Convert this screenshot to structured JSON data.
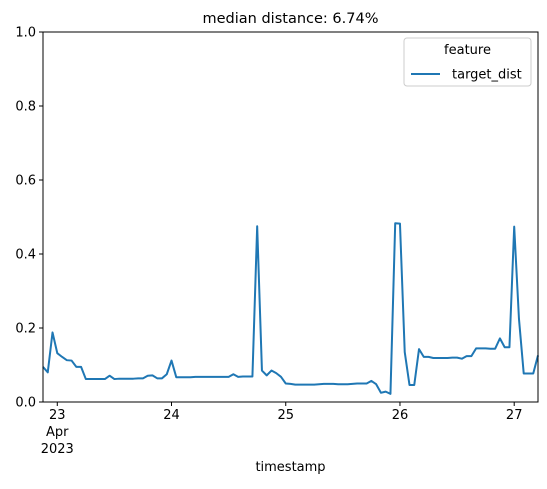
{
  "chart_data": {
    "type": "line",
    "title": "median distance: 6.74%",
    "xlabel": "timestamp",
    "ylabel": "",
    "xlim": [
      "2023-04-22 21:00",
      "2023-04-27 05:00"
    ],
    "ylim": [
      0,
      1
    ],
    "yticks": [
      "0.0",
      "0.2",
      "0.4",
      "0.6",
      "0.8",
      "1.0"
    ],
    "xticks": [
      {
        "t": "2023-04-23 00:00",
        "label": "23",
        "sub1": "Apr",
        "sub2": "2023"
      },
      {
        "t": "2023-04-24 00:00",
        "label": "24",
        "sub1": "",
        "sub2": ""
      },
      {
        "t": "2023-04-25 00:00",
        "label": "25",
        "sub1": "",
        "sub2": ""
      },
      {
        "t": "2023-04-26 00:00",
        "label": "26",
        "sub1": "",
        "sub2": ""
      },
      {
        "t": "2023-04-27 00:00",
        "label": "27",
        "sub1": "",
        "sub2": ""
      }
    ],
    "grid": false,
    "legend": {
      "title": "feature",
      "position": "upper right"
    },
    "series": [
      {
        "name": "target_dist",
        "color": "#1f77b4",
        "points": [
          [
            "2023-04-22 21:00",
            0.095
          ],
          [
            "2023-04-22 22:00",
            0.08
          ],
          [
            "2023-04-22 23:00",
            0.188
          ],
          [
            "2023-04-23 00:00",
            0.132
          ],
          [
            "2023-04-23 01:00",
            0.122
          ],
          [
            "2023-04-23 02:00",
            0.113
          ],
          [
            "2023-04-23 03:00",
            0.112
          ],
          [
            "2023-04-23 04:00",
            0.095
          ],
          [
            "2023-04-23 05:00",
            0.095
          ],
          [
            "2023-04-23 06:00",
            0.062
          ],
          [
            "2023-04-23 07:00",
            0.062
          ],
          [
            "2023-04-23 08:00",
            0.062
          ],
          [
            "2023-04-23 09:00",
            0.062
          ],
          [
            "2023-04-23 10:00",
            0.062
          ],
          [
            "2023-04-23 11:00",
            0.071
          ],
          [
            "2023-04-23 12:00",
            0.062
          ],
          [
            "2023-04-23 13:00",
            0.063
          ],
          [
            "2023-04-23 14:00",
            0.063
          ],
          [
            "2023-04-23 15:00",
            0.063
          ],
          [
            "2023-04-23 16:00",
            0.063
          ],
          [
            "2023-04-23 17:00",
            0.064
          ],
          [
            "2023-04-23 18:00",
            0.064
          ],
          [
            "2023-04-23 19:00",
            0.071
          ],
          [
            "2023-04-23 20:00",
            0.072
          ],
          [
            "2023-04-23 21:00",
            0.064
          ],
          [
            "2023-04-23 22:00",
            0.064
          ],
          [
            "2023-04-23 23:00",
            0.075
          ],
          [
            "2023-04-24 00:00",
            0.112
          ],
          [
            "2023-04-24 01:00",
            0.067
          ],
          [
            "2023-04-24 02:00",
            0.067
          ],
          [
            "2023-04-24 03:00",
            0.067
          ],
          [
            "2023-04-24 04:00",
            0.067
          ],
          [
            "2023-04-24 05:00",
            0.068
          ],
          [
            "2023-04-24 06:00",
            0.068
          ],
          [
            "2023-04-24 07:00",
            0.068
          ],
          [
            "2023-04-24 08:00",
            0.068
          ],
          [
            "2023-04-24 09:00",
            0.068
          ],
          [
            "2023-04-24 10:00",
            0.068
          ],
          [
            "2023-04-24 11:00",
            0.068
          ],
          [
            "2023-04-24 12:00",
            0.068
          ],
          [
            "2023-04-24 13:00",
            0.075
          ],
          [
            "2023-04-24 14:00",
            0.068
          ],
          [
            "2023-04-24 15:00",
            0.069
          ],
          [
            "2023-04-24 16:00",
            0.069
          ],
          [
            "2023-04-24 17:00",
            0.069
          ],
          [
            "2023-04-24 18:00",
            0.475
          ],
          [
            "2023-04-24 19:00",
            0.085
          ],
          [
            "2023-04-24 20:00",
            0.072
          ],
          [
            "2023-04-24 21:00",
            0.085
          ],
          [
            "2023-04-24 22:00",
            0.078
          ],
          [
            "2023-04-24 23:00",
            0.068
          ],
          [
            "2023-04-25 00:00",
            0.05
          ],
          [
            "2023-04-25 01:00",
            0.049
          ],
          [
            "2023-04-25 02:00",
            0.047
          ],
          [
            "2023-04-25 03:00",
            0.047
          ],
          [
            "2023-04-25 04:00",
            0.047
          ],
          [
            "2023-04-25 05:00",
            0.047
          ],
          [
            "2023-04-25 06:00",
            0.047
          ],
          [
            "2023-04-25 07:00",
            0.048
          ],
          [
            "2023-04-25 08:00",
            0.049
          ],
          [
            "2023-04-25 09:00",
            0.049
          ],
          [
            "2023-04-25 10:00",
            0.049
          ],
          [
            "2023-04-25 11:00",
            0.048
          ],
          [
            "2023-04-25 12:00",
            0.048
          ],
          [
            "2023-04-25 13:00",
            0.048
          ],
          [
            "2023-04-25 14:00",
            0.049
          ],
          [
            "2023-04-25 15:00",
            0.05
          ],
          [
            "2023-04-25 16:00",
            0.05
          ],
          [
            "2023-04-25 17:00",
            0.05
          ],
          [
            "2023-04-25 18:00",
            0.057
          ],
          [
            "2023-04-25 19:00",
            0.048
          ],
          [
            "2023-04-25 20:00",
            0.025
          ],
          [
            "2023-04-25 21:00",
            0.028
          ],
          [
            "2023-04-25 22:00",
            0.022
          ],
          [
            "2023-04-25 23:00",
            0.483
          ],
          [
            "2023-04-26 00:00",
            0.482
          ],
          [
            "2023-04-26 01:00",
            0.135
          ],
          [
            "2023-04-26 02:00",
            0.046
          ],
          [
            "2023-04-26 03:00",
            0.046
          ],
          [
            "2023-04-26 04:00",
            0.143
          ],
          [
            "2023-04-26 05:00",
            0.122
          ],
          [
            "2023-04-26 06:00",
            0.122
          ],
          [
            "2023-04-26 07:00",
            0.119
          ],
          [
            "2023-04-26 08:00",
            0.119
          ],
          [
            "2023-04-26 09:00",
            0.119
          ],
          [
            "2023-04-26 10:00",
            0.119
          ],
          [
            "2023-04-26 11:00",
            0.12
          ],
          [
            "2023-04-26 12:00",
            0.12
          ],
          [
            "2023-04-26 13:00",
            0.117
          ],
          [
            "2023-04-26 14:00",
            0.124
          ],
          [
            "2023-04-26 15:00",
            0.124
          ],
          [
            "2023-04-26 16:00",
            0.145
          ],
          [
            "2023-04-26 17:00",
            0.145
          ],
          [
            "2023-04-26 18:00",
            0.145
          ],
          [
            "2023-04-26 19:00",
            0.144
          ],
          [
            "2023-04-26 20:00",
            0.144
          ],
          [
            "2023-04-26 21:00",
            0.172
          ],
          [
            "2023-04-26 22:00",
            0.148
          ],
          [
            "2023-04-26 23:00",
            0.148
          ],
          [
            "2023-04-27 00:00",
            0.474
          ],
          [
            "2023-04-27 01:00",
            0.225
          ],
          [
            "2023-04-27 02:00",
            0.077
          ],
          [
            "2023-04-27 03:00",
            0.077
          ],
          [
            "2023-04-27 04:00",
            0.077
          ],
          [
            "2023-04-27 05:00",
            0.126
          ]
        ]
      }
    ]
  }
}
